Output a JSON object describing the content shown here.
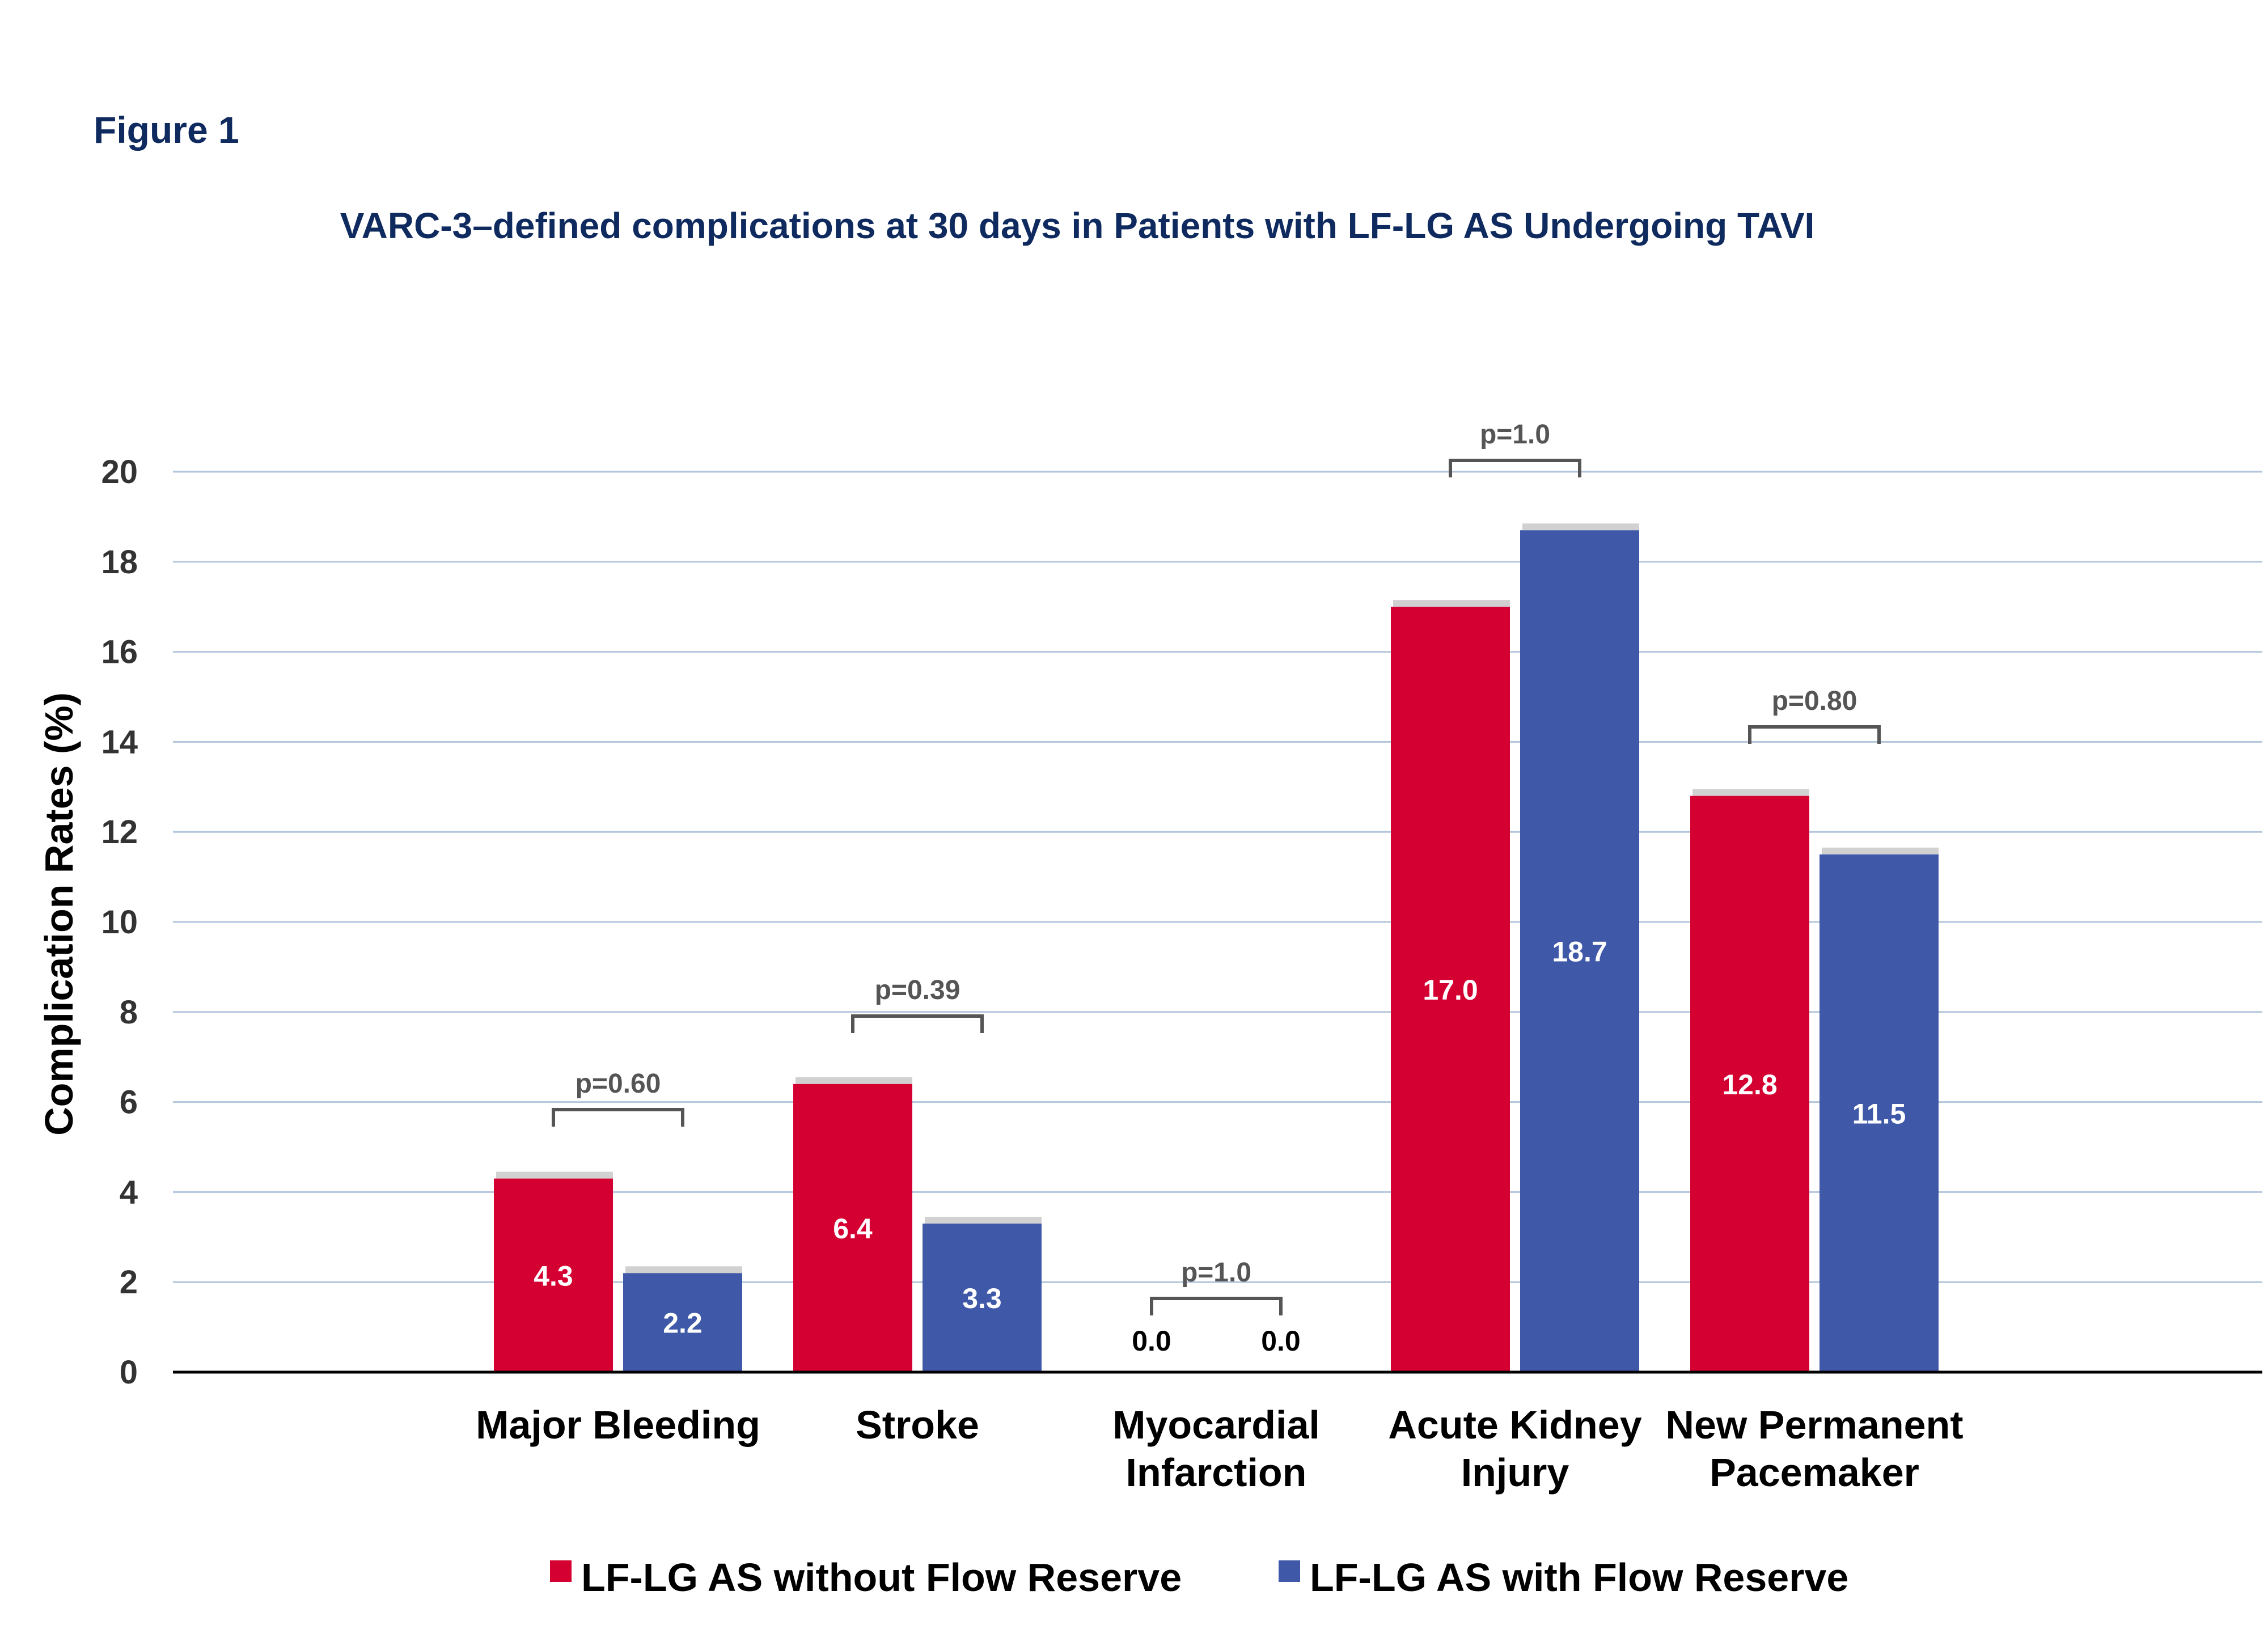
{
  "figure_label": "Figure 1",
  "chart_data": {
    "type": "bar",
    "title": "VARC-3–defined complications at 30 days in Patients with LF-LG AS Undergoing TAVI",
    "xlabel": "",
    "ylabel": "Complication Rates (%)",
    "ylim": [
      0,
      20
    ],
    "yticks": [
      "0",
      "2",
      "4",
      "6",
      "8",
      "10",
      "12",
      "14",
      "16",
      "18",
      "20"
    ],
    "grid": true,
    "legend_position": "bottom-center",
    "categories": [
      [
        "Major Bleeding"
      ],
      [
        "Stroke"
      ],
      [
        "Myocardial",
        "Infarction"
      ],
      [
        "Acute Kidney",
        "Injury"
      ],
      [
        "New Permanent",
        "Pacemaker"
      ]
    ],
    "series": [
      {
        "name": "LF-LG AS without Flow Reserve",
        "color": "#d50032",
        "values": [
          4.3,
          6.4,
          0.0,
          17.0,
          12.8
        ],
        "labels": [
          "4.3",
          "6.4",
          "0.0",
          "17.0",
          "12.8"
        ]
      },
      {
        "name": "LF-LG AS with Flow Reserve",
        "color": "#3f59a8",
        "values": [
          2.2,
          3.3,
          0.0,
          18.7,
          11.5
        ],
        "labels": [
          "2.2",
          "3.3",
          "0.0",
          "18.7",
          "11.5"
        ]
      }
    ],
    "p_values": [
      "p=0.60",
      "p=0.39",
      "p=1.0",
      "p=1.0",
      "p=0.80"
    ]
  }
}
